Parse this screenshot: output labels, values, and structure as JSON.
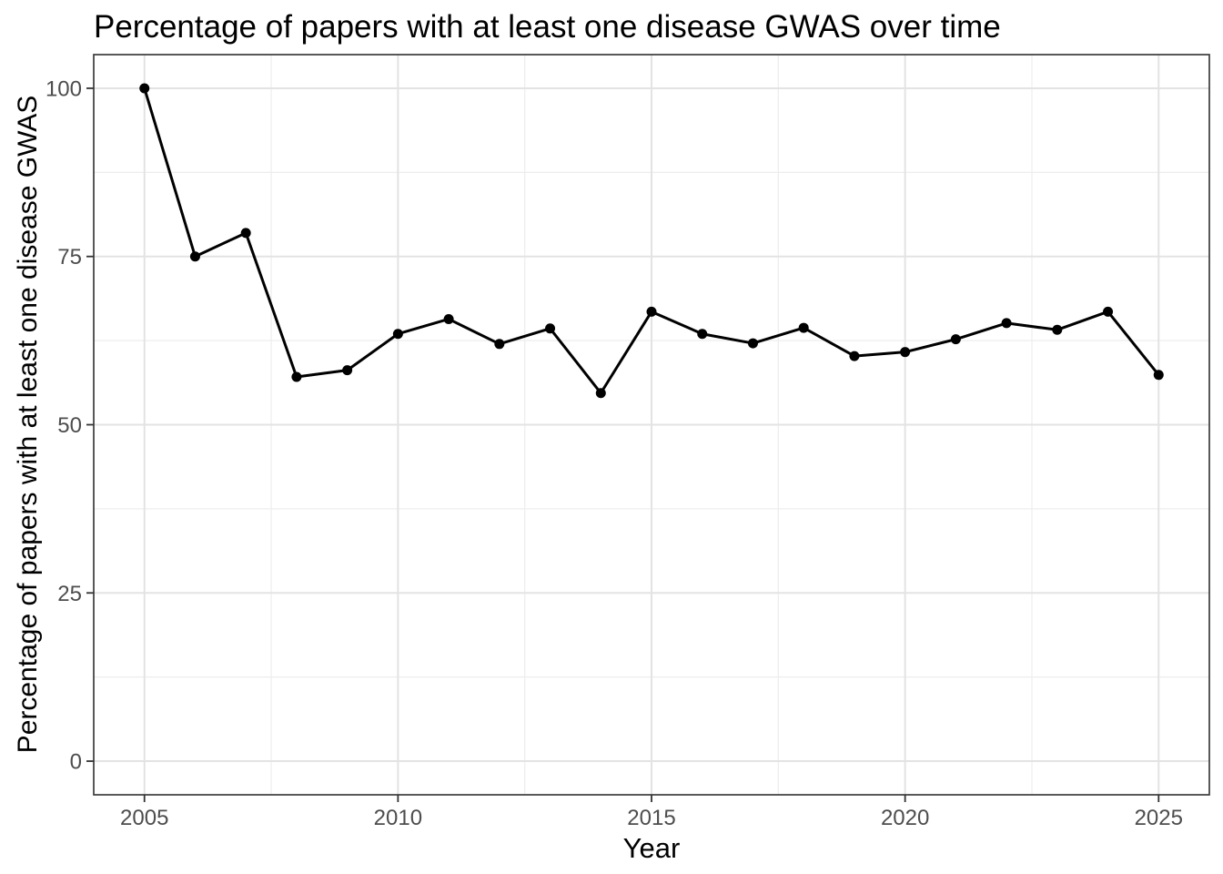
{
  "chart_data": {
    "type": "line",
    "title": "Percentage of papers with at least one disease GWAS over time",
    "xlabel": "Year",
    "ylabel": "Percentage of papers with at least one disease GWAS",
    "x": [
      2005,
      2006,
      2007,
      2008,
      2009,
      2010,
      2011,
      2012,
      2013,
      2014,
      2015,
      2016,
      2017,
      2018,
      2019,
      2020,
      2021,
      2022,
      2023,
      2024,
      2025
    ],
    "series": [
      {
        "name": "Percentage of papers with at least one disease GWAS",
        "values": [
          100,
          75,
          78.5,
          57.1,
          58.1,
          63.5,
          65.7,
          62.0,
          64.3,
          54.7,
          66.8,
          63.5,
          62.1,
          64.4,
          60.2,
          60.8,
          62.7,
          65.1,
          64.1,
          66.8,
          57.4
        ]
      }
    ],
    "x_ticks": [
      2005,
      2010,
      2015,
      2020,
      2025
    ],
    "y_ticks": [
      0,
      25,
      50,
      75,
      100
    ],
    "x_minor_ticks": [
      2007.5,
      2012.5,
      2017.5,
      2022.5
    ],
    "y_minor_ticks": [
      12.5,
      37.5,
      62.5,
      87.5
    ],
    "xlim": [
      2004,
      2026
    ],
    "ylim": [
      -5,
      105
    ],
    "grid": "on",
    "legend": "none",
    "marker": "filled-circle",
    "colors": {
      "line": "#000000",
      "point": "#000000",
      "grid_major": "#e3e3e3",
      "grid_minor": "#ededed",
      "panel_border": "#3c3c3c",
      "tick_mark": "#333333",
      "axis_text": "#4d4d4d",
      "title_text": "#000000",
      "background": "#ffffff"
    }
  }
}
